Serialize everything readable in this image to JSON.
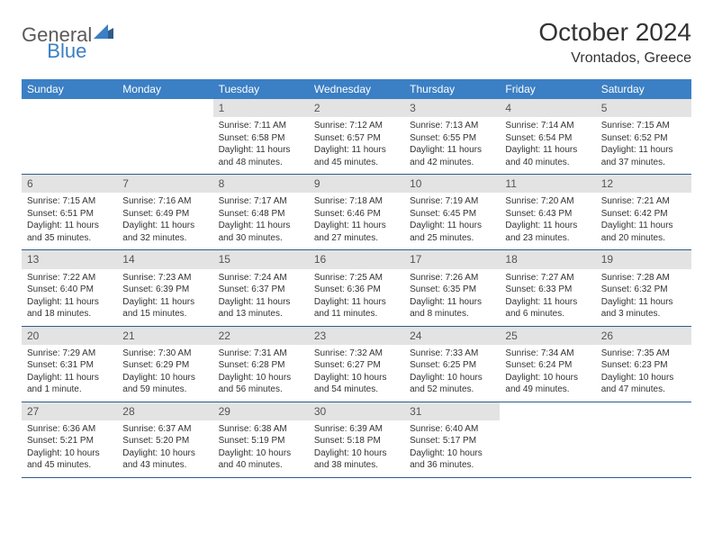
{
  "brand": {
    "part1": "General",
    "part2": "Blue"
  },
  "title": "October 2024",
  "location": "Vrontados, Greece",
  "colors": {
    "header_bg": "#3b7fc4",
    "header_text": "#ffffff",
    "daynum_bg": "#e3e3e3",
    "daynum_text": "#555555",
    "body_text": "#333333",
    "divider": "#2e5c8a",
    "page_bg": "#ffffff"
  },
  "weekdays": [
    "Sunday",
    "Monday",
    "Tuesday",
    "Wednesday",
    "Thursday",
    "Friday",
    "Saturday"
  ],
  "weeks": [
    [
      null,
      null,
      {
        "n": "1",
        "sr": "7:11 AM",
        "ss": "6:58 PM",
        "dl": "11 hours and 48 minutes."
      },
      {
        "n": "2",
        "sr": "7:12 AM",
        "ss": "6:57 PM",
        "dl": "11 hours and 45 minutes."
      },
      {
        "n": "3",
        "sr": "7:13 AM",
        "ss": "6:55 PM",
        "dl": "11 hours and 42 minutes."
      },
      {
        "n": "4",
        "sr": "7:14 AM",
        "ss": "6:54 PM",
        "dl": "11 hours and 40 minutes."
      },
      {
        "n": "5",
        "sr": "7:15 AM",
        "ss": "6:52 PM",
        "dl": "11 hours and 37 minutes."
      }
    ],
    [
      {
        "n": "6",
        "sr": "7:15 AM",
        "ss": "6:51 PM",
        "dl": "11 hours and 35 minutes."
      },
      {
        "n": "7",
        "sr": "7:16 AM",
        "ss": "6:49 PM",
        "dl": "11 hours and 32 minutes."
      },
      {
        "n": "8",
        "sr": "7:17 AM",
        "ss": "6:48 PM",
        "dl": "11 hours and 30 minutes."
      },
      {
        "n": "9",
        "sr": "7:18 AM",
        "ss": "6:46 PM",
        "dl": "11 hours and 27 minutes."
      },
      {
        "n": "10",
        "sr": "7:19 AM",
        "ss": "6:45 PM",
        "dl": "11 hours and 25 minutes."
      },
      {
        "n": "11",
        "sr": "7:20 AM",
        "ss": "6:43 PM",
        "dl": "11 hours and 23 minutes."
      },
      {
        "n": "12",
        "sr": "7:21 AM",
        "ss": "6:42 PM",
        "dl": "11 hours and 20 minutes."
      }
    ],
    [
      {
        "n": "13",
        "sr": "7:22 AM",
        "ss": "6:40 PM",
        "dl": "11 hours and 18 minutes."
      },
      {
        "n": "14",
        "sr": "7:23 AM",
        "ss": "6:39 PM",
        "dl": "11 hours and 15 minutes."
      },
      {
        "n": "15",
        "sr": "7:24 AM",
        "ss": "6:37 PM",
        "dl": "11 hours and 13 minutes."
      },
      {
        "n": "16",
        "sr": "7:25 AM",
        "ss": "6:36 PM",
        "dl": "11 hours and 11 minutes."
      },
      {
        "n": "17",
        "sr": "7:26 AM",
        "ss": "6:35 PM",
        "dl": "11 hours and 8 minutes."
      },
      {
        "n": "18",
        "sr": "7:27 AM",
        "ss": "6:33 PM",
        "dl": "11 hours and 6 minutes."
      },
      {
        "n": "19",
        "sr": "7:28 AM",
        "ss": "6:32 PM",
        "dl": "11 hours and 3 minutes."
      }
    ],
    [
      {
        "n": "20",
        "sr": "7:29 AM",
        "ss": "6:31 PM",
        "dl": "11 hours and 1 minute."
      },
      {
        "n": "21",
        "sr": "7:30 AM",
        "ss": "6:29 PM",
        "dl": "10 hours and 59 minutes."
      },
      {
        "n": "22",
        "sr": "7:31 AM",
        "ss": "6:28 PM",
        "dl": "10 hours and 56 minutes."
      },
      {
        "n": "23",
        "sr": "7:32 AM",
        "ss": "6:27 PM",
        "dl": "10 hours and 54 minutes."
      },
      {
        "n": "24",
        "sr": "7:33 AM",
        "ss": "6:25 PM",
        "dl": "10 hours and 52 minutes."
      },
      {
        "n": "25",
        "sr": "7:34 AM",
        "ss": "6:24 PM",
        "dl": "10 hours and 49 minutes."
      },
      {
        "n": "26",
        "sr": "7:35 AM",
        "ss": "6:23 PM",
        "dl": "10 hours and 47 minutes."
      }
    ],
    [
      {
        "n": "27",
        "sr": "6:36 AM",
        "ss": "5:21 PM",
        "dl": "10 hours and 45 minutes."
      },
      {
        "n": "28",
        "sr": "6:37 AM",
        "ss": "5:20 PM",
        "dl": "10 hours and 43 minutes."
      },
      {
        "n": "29",
        "sr": "6:38 AM",
        "ss": "5:19 PM",
        "dl": "10 hours and 40 minutes."
      },
      {
        "n": "30",
        "sr": "6:39 AM",
        "ss": "5:18 PM",
        "dl": "10 hours and 38 minutes."
      },
      {
        "n": "31",
        "sr": "6:40 AM",
        "ss": "5:17 PM",
        "dl": "10 hours and 36 minutes."
      },
      null,
      null
    ]
  ],
  "labels": {
    "sunrise": "Sunrise:",
    "sunset": "Sunset:",
    "daylight": "Daylight:"
  }
}
